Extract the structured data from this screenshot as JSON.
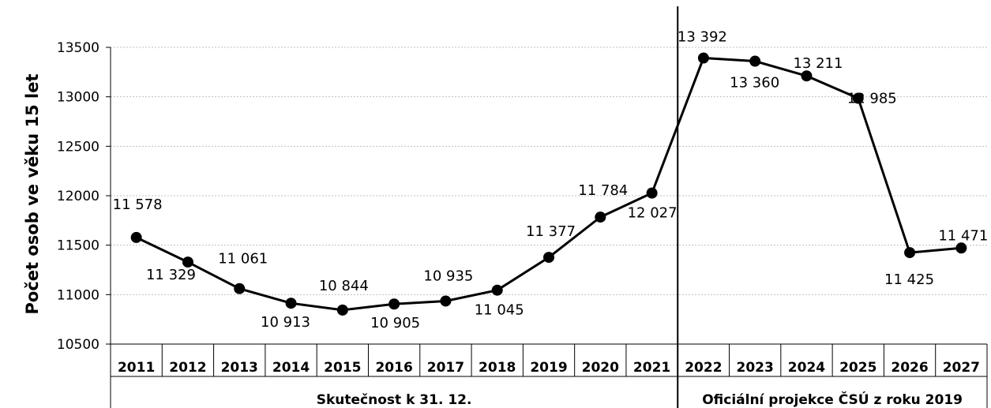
{
  "chart_data": {
    "type": "line",
    "ylabel": "Počet osob ve věku 15 let",
    "ylim": [
      10500,
      13500
    ],
    "yticks": [
      10500,
      11000,
      11500,
      12000,
      12500,
      13000,
      13500
    ],
    "grid": true,
    "categories": [
      "2011",
      "2012",
      "2013",
      "2014",
      "2015",
      "2016",
      "2017",
      "2018",
      "2019",
      "2020",
      "2021",
      "2022",
      "2023",
      "2024",
      "2025",
      "2026",
      "2027"
    ],
    "values": [
      11578,
      11329,
      11061,
      10913,
      10844,
      10905,
      10935,
      11045,
      11377,
      11784,
      12027,
      13392,
      13360,
      13211,
      12985,
      11425,
      11471
    ],
    "data_labels": [
      "11 578",
      "11 329",
      "11 061",
      "10 913",
      "10 844",
      "10 905",
      "10 935",
      "11 045",
      "11 377",
      "11 784",
      "12 027",
      "13 392",
      "13 360",
      "13 211",
      "12 985",
      "11 425",
      "11 471"
    ],
    "groups": [
      {
        "label": "Skutečnost k 31. 12.",
        "start": 0,
        "end": 10
      },
      {
        "label": "Oficiální  projekce ČSÚ  z roku 2019",
        "start": 11,
        "end": 16
      }
    ]
  }
}
